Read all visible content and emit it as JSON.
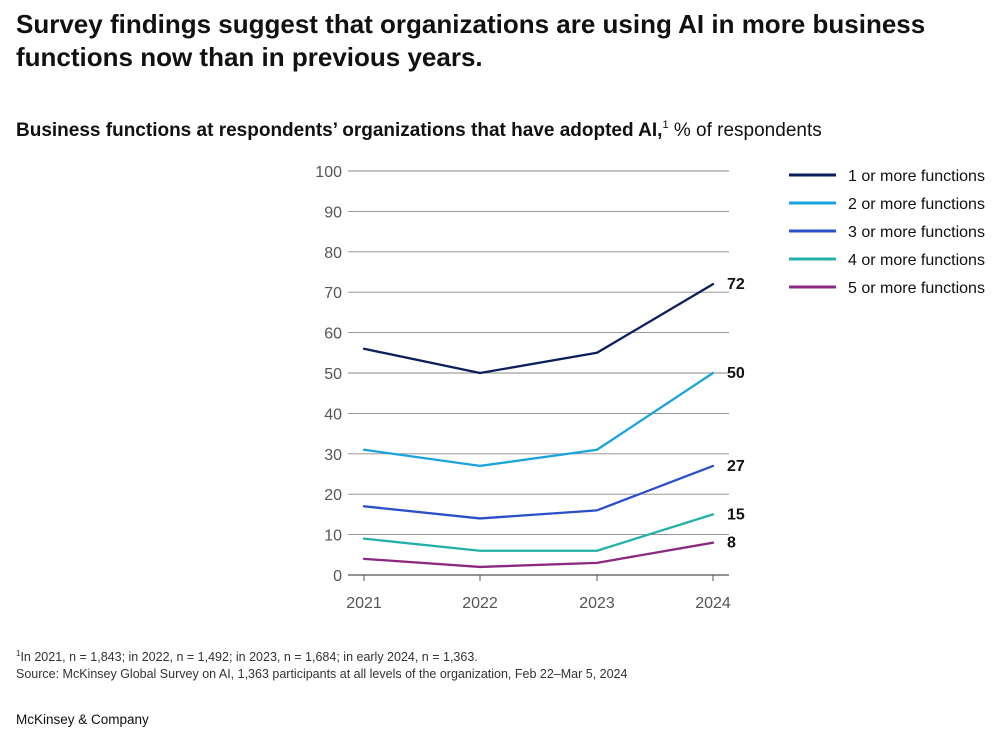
{
  "headline": "Survey findings suggest that organizations are using AI in more business functions now than in previous years.",
  "subtitle": {
    "bold": "Business functions at respondents’ organizations that have adopted AI,",
    "sup": "1",
    "unit": "% of respondents"
  },
  "chart_data": {
    "type": "line",
    "x": [
      "2021",
      "2022",
      "2023",
      "2024"
    ],
    "y_ticks": [
      0,
      10,
      20,
      30,
      40,
      50,
      60,
      70,
      80,
      90,
      100
    ],
    "ylim": [
      0,
      100
    ],
    "grid": true,
    "legend_position": "right",
    "series": [
      {
        "name": "1 or more functions",
        "color": "#0b1f5c",
        "values": [
          56,
          50,
          55,
          72
        ],
        "end_label": "72"
      },
      {
        "name": "2 or more functions",
        "color": "#1ba3dd",
        "values": [
          31,
          27,
          31,
          50
        ],
        "end_label": "50"
      },
      {
        "name": "3 or more functions",
        "color": "#2b4fc9",
        "values": [
          17,
          14,
          16,
          27
        ],
        "end_label": "27"
      },
      {
        "name": "4 or more functions",
        "color": "#22b0a8",
        "values": [
          9,
          6,
          6,
          15
        ],
        "end_label": "15"
      },
      {
        "name": "5 or more functions",
        "color": "#8c2880",
        "values": [
          4,
          2,
          3,
          8
        ],
        "end_label": "8"
      }
    ]
  },
  "footnotes": {
    "sup": "1",
    "line1": "In 2021, n = 1,843; in 2022, n = 1,492; in 2023, n = 1,684; in early 2024, n = 1,363.",
    "line2": "Source: McKinsey Global Survey on AI, 1,363 participants at all levels of the organization, Feb 22–Mar 5, 2024"
  },
  "brand": "McKinsey & Company"
}
